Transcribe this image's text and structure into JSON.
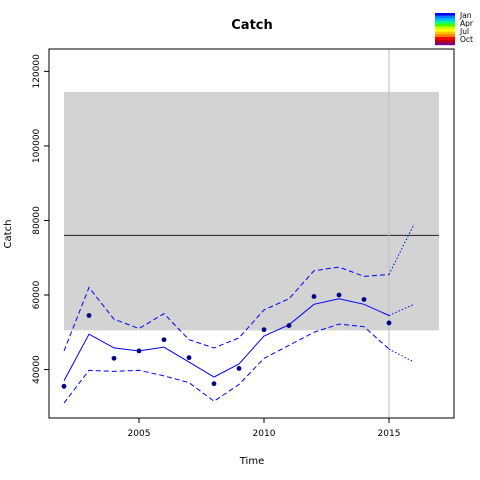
{
  "chart_data": {
    "type": "line",
    "title": "Catch",
    "xlabel": "Time",
    "ylabel": "Catch",
    "xlim": [
      2001.4,
      2017.6
    ],
    "ylim": [
      27000,
      126000
    ],
    "xticks": [
      2005,
      2010,
      2015
    ],
    "yticks": [
      40000,
      60000,
      80000,
      100000,
      120000
    ],
    "shaded_band": {
      "x": [
        2002,
        2017
      ],
      "y": [
        50500,
        114500
      ],
      "color": "#d3d3d3"
    },
    "reference_line_y": 76000,
    "reference_line_x": 2015,
    "legend_position": "top-right",
    "legend": {
      "labels": [
        "Jan",
        "Apr",
        "Jul",
        "Oct"
      ],
      "colors": [
        "#0000ff",
        "#0080ff",
        "#00c0ff",
        "#00ff80",
        "#40ff00",
        "#c0ff00",
        "#ffff00",
        "#ffc000",
        "#ff8000",
        "#ff0000",
        "#c00000",
        "#800080"
      ]
    },
    "x": [
      2002,
      2003,
      2004,
      2005,
      2006,
      2007,
      2008,
      2009,
      2010,
      2011,
      2012,
      2013,
      2014,
      2015
    ],
    "series": [
      {
        "role": "observed",
        "style": "points",
        "color": "#00008b",
        "values": [
          35500,
          54500,
          43000,
          45000,
          48000,
          43200,
          36200,
          40300,
          50700,
          51800,
          59600,
          60000,
          58800,
          52500
        ]
      },
      {
        "role": "fit",
        "style": "solid",
        "color": "#0000ff",
        "values": [
          37000,
          49500,
          45800,
          45000,
          46000,
          42000,
          38000,
          41500,
          49000,
          52000,
          57500,
          59000,
          57500,
          54500
        ]
      },
      {
        "role": "upper",
        "style": "dashed",
        "color": "#0000ff",
        "values": [
          45000,
          62000,
          53500,
          51000,
          55000,
          48000,
          45800,
          48500,
          56000,
          59000,
          66500,
          67500,
          65000,
          65500
        ]
      },
      {
        "role": "lower",
        "style": "dashed",
        "color": "#0000ff",
        "values": [
          31000,
          39800,
          39500,
          39800,
          38300,
          36500,
          31500,
          36000,
          43000,
          46500,
          50000,
          52200,
          51500,
          45500
        ]
      }
    ],
    "projection": {
      "x": [
        2015,
        2016
      ],
      "series": [
        {
          "role": "fit",
          "style": "dotted",
          "color": "#0000ff",
          "values": [
            54500,
            57500
          ]
        },
        {
          "role": "upper",
          "style": "dotted",
          "color": "#0000ff",
          "values": [
            65500,
            79000
          ]
        },
        {
          "role": "lower",
          "style": "dotted",
          "color": "#0000ff",
          "values": [
            45500,
            42000
          ]
        }
      ]
    }
  }
}
